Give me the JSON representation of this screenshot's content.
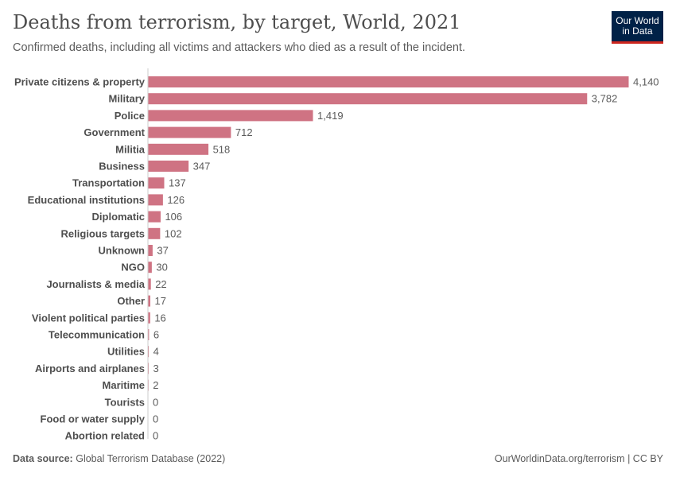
{
  "header": {
    "title": "Deaths from terrorism, by target, World, 2021",
    "subtitle": "Confirmed deaths, including all victims and attackers who died as a result of the incident.",
    "logo_line1": "Our World",
    "logo_line2": "in Data"
  },
  "footer": {
    "source_label": "Data source:",
    "source": "Global Terrorism Database (2022)",
    "credit": "OurWorldinData.org/terrorism | CC BY"
  },
  "chart_data": {
    "type": "bar",
    "orientation": "horizontal",
    "title": "Deaths from terrorism, by target, World, 2021",
    "bar_color": "#cf7383",
    "categories": [
      "Private citizens & property",
      "Military",
      "Police",
      "Government",
      "Militia",
      "Business",
      "Transportation",
      "Educational institutions",
      "Diplomatic",
      "Religious targets",
      "Unknown",
      "NGO",
      "Journalists & media",
      "Other",
      "Violent political parties",
      "Telecommunication",
      "Utilities",
      "Airports and airplanes",
      "Maritime",
      "Tourists",
      "Food or water supply",
      "Abortion related"
    ],
    "values": [
      4140,
      3782,
      1419,
      712,
      518,
      347,
      137,
      126,
      106,
      102,
      37,
      30,
      22,
      17,
      16,
      6,
      4,
      3,
      2,
      0,
      0,
      0
    ],
    "value_labels": [
      "4,140",
      "3,782",
      "1,419",
      "712",
      "518",
      "347",
      "137",
      "126",
      "106",
      "102",
      "37",
      "30",
      "22",
      "17",
      "16",
      "6",
      "4",
      "3",
      "2",
      "0",
      "0",
      "0"
    ]
  }
}
